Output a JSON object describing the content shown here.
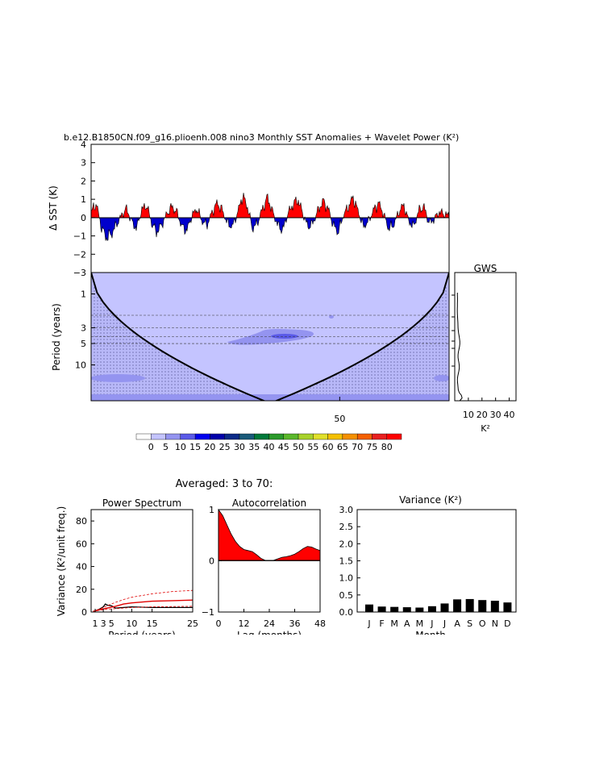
{
  "top_title": "b.e12.B1850CN.f09_g16.plioenh.008 nino3 Monthly SST Anomalies + Wavelet Power (K²)",
  "averaged_title": "Averaged: 3 to 70:",
  "chart_data": [
    {
      "type": "area",
      "name": "sst-anomaly",
      "ylabel": "Δ SST (K)",
      "ylim": [
        -3,
        4
      ],
      "yticks": [
        -3,
        -2,
        -1,
        0,
        1,
        2,
        3,
        4
      ],
      "ytick_labels": [
        "−3",
        "−2",
        "−1",
        "0",
        "1",
        "2",
        "3",
        "4"
      ],
      "xlim": [
        0,
        72
      ],
      "y_sample": [
        0.3,
        0.8,
        -0.5,
        -1.1,
        -0.9,
        -0.4,
        0.1,
        0.5,
        -0.2,
        -0.6,
        0.4,
        0.7,
        -0.3,
        -0.8,
        -0.4,
        0.2,
        0.6,
        0.3,
        -0.5,
        -0.7,
        0.1,
        0.5,
        -0.2,
        -0.4,
        0.3,
        0.8,
        0.4,
        -0.3,
        -0.5,
        0.2,
        1.2,
        0.6,
        -0.6,
        -0.3,
        0.5,
        1.1,
        0.3,
        -0.4,
        -0.7,
        0.2,
        0.7,
        1.0,
        0.2,
        -0.5,
        -0.3,
        0.4,
        0.9,
        0.5,
        -0.4,
        -0.8,
        0.1,
        0.6,
        1.1,
        0.3,
        -0.5,
        -0.2,
        0.4,
        0.8,
        0.2,
        -0.6,
        -0.4,
        0.3,
        0.7,
        -0.2,
        -0.5,
        0.4,
        0.6,
        -0.3,
        -0.1,
        0.3,
        0.2,
        0.1
      ],
      "colors": {
        "positive": "#ff0000",
        "negative": "#0000cc"
      }
    },
    {
      "type": "heatmap",
      "name": "wavelet-power",
      "ylabel": "Period (years)",
      "yticks": [
        1,
        3,
        5,
        10
      ],
      "ytick_labels": [
        "1",
        "3",
        "5",
        "10"
      ],
      "xtick_labels": [
        "50"
      ],
      "xticks": [
        50
      ],
      "xlim": [
        0,
        72
      ],
      "ylim_period": [
        0.5,
        32
      ],
      "colorbar": {
        "labels": [
          "0",
          "5",
          "10",
          "15",
          "20",
          "25",
          "30",
          "35",
          "40",
          "45",
          "50",
          "55",
          "60",
          "65",
          "70",
          "75",
          "80"
        ],
        "colors": [
          "#ffffff",
          "#c4c4ff",
          "#9494f0",
          "#5a5ae8",
          "#0000ee",
          "#0000aa",
          "#0a2a88",
          "#1a5a7a",
          "#007a3a",
          "#2a9a2a",
          "#5ab82a",
          "#a8d22a",
          "#e0e02a",
          "#f4c000",
          "#f49000",
          "#f46000",
          "#e82020",
          "#ff0000"
        ]
      }
    },
    {
      "type": "line",
      "name": "gws",
      "title": "GWS",
      "xlabel": "K²",
      "xtick_labels": [
        "10",
        "20",
        "30",
        "40"
      ],
      "xticks": [
        10,
        20,
        30,
        40
      ],
      "xlim": [
        0,
        45
      ]
    },
    {
      "type": "line",
      "name": "power-spectrum",
      "title": "Power Spectrum",
      "xlabel": "Period (years)",
      "ylabel": "Variance (K²/unit freq.)",
      "xticks": [
        1,
        3,
        5,
        10,
        15,
        25
      ],
      "xtick_labels": [
        "1",
        "3",
        "5",
        "10",
        "15",
        "25"
      ],
      "xlim": [
        0,
        25
      ],
      "yticks": [
        0,
        20,
        40,
        60,
        80
      ],
      "ytick_labels": [
        "0",
        "20",
        "40",
        "60",
        "80"
      ],
      "ylim": [
        0,
        90
      ],
      "series": [
        {
          "x": [
            0.5,
            1,
            2,
            3,
            3.5,
            4,
            5,
            6,
            8,
            10,
            15,
            20,
            25
          ],
          "values": [
            0.5,
            1,
            2.5,
            4.5,
            7,
            6,
            5.5,
            3.5,
            4,
            4.5,
            4,
            4,
            4
          ],
          "color": "#000000",
          "width": 1.3,
          "dash": ""
        },
        {
          "x": [
            0.5,
            2,
            4,
            6,
            8,
            10,
            15,
            20,
            25
          ],
          "values": [
            0.5,
            2,
            3.5,
            5,
            7,
            8,
            9.5,
            10,
            10.5
          ],
          "color": "#e00000",
          "width": 1.4,
          "dash": ""
        },
        {
          "x": [
            0.5,
            2,
            4,
            6,
            8,
            10,
            15,
            20,
            25
          ],
          "values": [
            0.5,
            2.5,
            5.5,
            8.5,
            11,
            13,
            16,
            18,
            19
          ],
          "color": "#e00000",
          "width": 0.8,
          "dash": "3,2"
        },
        {
          "x": [
            0.5,
            2,
            4,
            6,
            8,
            10,
            15,
            20,
            25
          ],
          "values": [
            0.3,
            1.5,
            2.5,
            3,
            3.5,
            4,
            4.5,
            4.8,
            5
          ],
          "color": "#e00000",
          "width": 0.8,
          "dash": "3,2"
        }
      ]
    },
    {
      "type": "area",
      "name": "autocorrelation",
      "title": "Autocorrelation",
      "xlabel": "Lag (months)",
      "xticks": [
        0,
        12,
        24,
        36,
        48
      ],
      "xtick_labels": [
        "0",
        "12",
        "24",
        "36",
        "48"
      ],
      "xlim": [
        0,
        48
      ],
      "yticks": [
        -1,
        0,
        1
      ],
      "ytick_labels": [
        "−1",
        "0",
        "1"
      ],
      "ylim": [
        -1,
        1
      ],
      "x": [
        0,
        2,
        4,
        6,
        8,
        10,
        12,
        14,
        16,
        18,
        20,
        22,
        24,
        26,
        28,
        30,
        32,
        34,
        36,
        38,
        40,
        42,
        44,
        46,
        48
      ],
      "values": [
        1.0,
        0.88,
        0.7,
        0.52,
        0.38,
        0.28,
        0.22,
        0.2,
        0.18,
        0.12,
        0.05,
        0.01,
        0.0,
        0.01,
        0.04,
        0.07,
        0.08,
        0.1,
        0.13,
        0.18,
        0.24,
        0.28,
        0.27,
        0.23,
        0.2
      ],
      "color": "#ff0000"
    },
    {
      "type": "bar",
      "name": "monthly-variance",
      "title": "Variance (K²)",
      "xlabel": "Month",
      "categories": [
        "J",
        "F",
        "M",
        "A",
        "M",
        "J",
        "J",
        "A",
        "S",
        "O",
        "N",
        "D"
      ],
      "values": [
        0.22,
        0.16,
        0.15,
        0.14,
        0.13,
        0.17,
        0.25,
        0.37,
        0.38,
        0.35,
        0.33,
        0.28
      ],
      "yticks": [
        0.0,
        0.5,
        1.0,
        1.5,
        2.0,
        2.5,
        3.0
      ],
      "ytick_labels": [
        "0.0",
        "0.5",
        "1.0",
        "1.5",
        "2.0",
        "2.5",
        "3.0"
      ],
      "ylim": [
        0,
        3.0
      ],
      "color": "#000000"
    }
  ]
}
